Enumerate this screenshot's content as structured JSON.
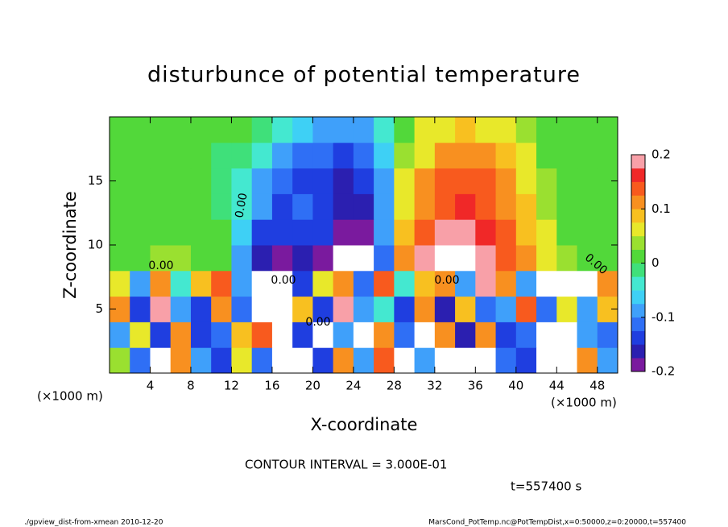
{
  "chart_data": {
    "type": "heatmap",
    "title": "disturbunce of potential temperature",
    "x_label": "X-coordinate",
    "y_label": "Z-coordinate",
    "x_unit_labels": [
      "(×1000 m)",
      "(×1000 m)"
    ],
    "contour_interval": "CONTOUR INTERVAL = 3.000E-01",
    "time_label": "t=557400 s",
    "footer_left": "./gpview_dist-from-xmean  2010-12-20",
    "footer_right": "MarsCond_PotTemp.nc@PotTempDist,x=0:50000,z=0:20000,t=557400",
    "contour_labels": [
      "0.00",
      "0.00",
      "0.00",
      "0.00",
      "0.00",
      "0.00"
    ],
    "xlim": [
      0,
      50
    ],
    "ylim": [
      0,
      20
    ],
    "xticks": [
      4,
      8,
      12,
      16,
      20,
      24,
      28,
      32,
      36,
      40,
      44,
      48
    ],
    "yticks": [
      5,
      10,
      15
    ],
    "clim": [
      -0.2,
      0.2
    ],
    "cticks": [
      0.2,
      0.1,
      0,
      -0.1,
      -0.2
    ],
    "colors": [
      "#7a1a9e",
      "#2b1fb0",
      "#1f3ee0",
      "#2f6ff5",
      "#3fa0fa",
      "#3ed0f5",
      "#44e8d0",
      "#3fe07a",
      "#52d83a",
      "#9ae030",
      "#e8e82a",
      "#f8c020",
      "#f89020",
      "#f85a1e",
      "#f02828",
      "#f8a0a8"
    ],
    "x": [
      1,
      3,
      5,
      7,
      9,
      11,
      13,
      15,
      17,
      19,
      21,
      23,
      25,
      27,
      29,
      31,
      33,
      35,
      37,
      39,
      41,
      43,
      45,
      47,
      49
    ],
    "y": [
      1,
      3,
      5,
      7,
      9,
      11,
      13,
      15,
      17,
      19
    ],
    "z": [
      [
        0.03,
        -0.12,
        0.25,
        0.1,
        -0.1,
        -0.14,
        0.05,
        -0.12,
        0.3,
        0.28,
        -0.15,
        0.12,
        -0.1,
        0.15,
        0.3,
        -0.1,
        0.25,
        0.3,
        0.28,
        -0.12,
        -0.14,
        0.3,
        0.3,
        0.1,
        -0.08
      ],
      [
        -0.1,
        0.05,
        -0.15,
        0.1,
        -0.14,
        -0.12,
        0.08,
        0.15,
        0.3,
        -0.15,
        0.25,
        -0.1,
        0.22,
        0.1,
        -0.12,
        0.3,
        0.1,
        -0.16,
        0.12,
        -0.14,
        -0.12,
        0.3,
        0.28,
        -0.1,
        -0.12
      ],
      [
        0.12,
        -0.14,
        0.18,
        -0.1,
        -0.15,
        0.1,
        -0.12,
        0.3,
        0.35,
        0.08,
        -0.14,
        0.2,
        -0.1,
        -0.05,
        -0.15,
        0.12,
        -0.16,
        0.08,
        -0.12,
        -0.1,
        0.15,
        -0.12,
        0.05,
        -0.1,
        0.08
      ],
      [
        0.05,
        -0.1,
        0.1,
        -0.05,
        0.08,
        0.15,
        -0.1,
        0.25,
        0.3,
        -0.15,
        0.05,
        0.1,
        -0.12,
        0.15,
        -0.05,
        0.08,
        0.12,
        -0.1,
        0.2,
        0.1,
        -0.08,
        0.25,
        0.3,
        0.22,
        0.1
      ],
      [
        0.02,
        0.02,
        0.03,
        0.03,
        0.02,
        0,
        -0.08,
        -0.16,
        -0.18,
        -0.17,
        -0.19,
        -0.25,
        -0.22,
        -0.12,
        0.1,
        0.18,
        0.22,
        0.25,
        0.2,
        0.14,
        0.1,
        0.06,
        0.03,
        0.02,
        0.01
      ],
      [
        0.01,
        0.01,
        0,
        0,
        0,
        0,
        -0.06,
        -0.13,
        -0.15,
        -0.13,
        -0.15,
        -0.19,
        -0.18,
        -0.1,
        0.08,
        0.15,
        0.18,
        0.19,
        0.17,
        0.13,
        0.09,
        0.05,
        0.02,
        0.01,
        0
      ],
      [
        0,
        0,
        0,
        0,
        0,
        -0.01,
        -0.04,
        -0.1,
        -0.13,
        -0.12,
        -0.14,
        -0.17,
        -0.16,
        -0.08,
        0.06,
        0.12,
        0.15,
        0.16,
        0.15,
        0.12,
        0.08,
        0.04,
        0.01,
        0,
        0
      ],
      [
        0,
        0,
        0,
        0,
        0,
        -0.01,
        -0.03,
        -0.08,
        -0.12,
        -0.13,
        -0.14,
        -0.16,
        -0.14,
        -0.08,
        0.05,
        0.1,
        0.13,
        0.14,
        0.13,
        0.1,
        0.06,
        0.03,
        0.01,
        0,
        0
      ],
      [
        0,
        0,
        0,
        0,
        0,
        -0.01,
        -0.02,
        -0.04,
        -0.08,
        -0.11,
        -0.12,
        -0.14,
        -0.12,
        -0.06,
        0.03,
        0.07,
        0.1,
        0.11,
        0.1,
        0.08,
        0.05,
        0.02,
        0.01,
        0,
        0
      ],
      [
        0,
        0,
        0,
        0,
        0,
        0,
        0,
        -0.01,
        -0.03,
        -0.06,
        -0.09,
        -0.1,
        -0.08,
        -0.04,
        0.02,
        0.05,
        0.07,
        0.08,
        0.07,
        0.05,
        0.03,
        0.01,
        0,
        0,
        0
      ]
    ]
  }
}
